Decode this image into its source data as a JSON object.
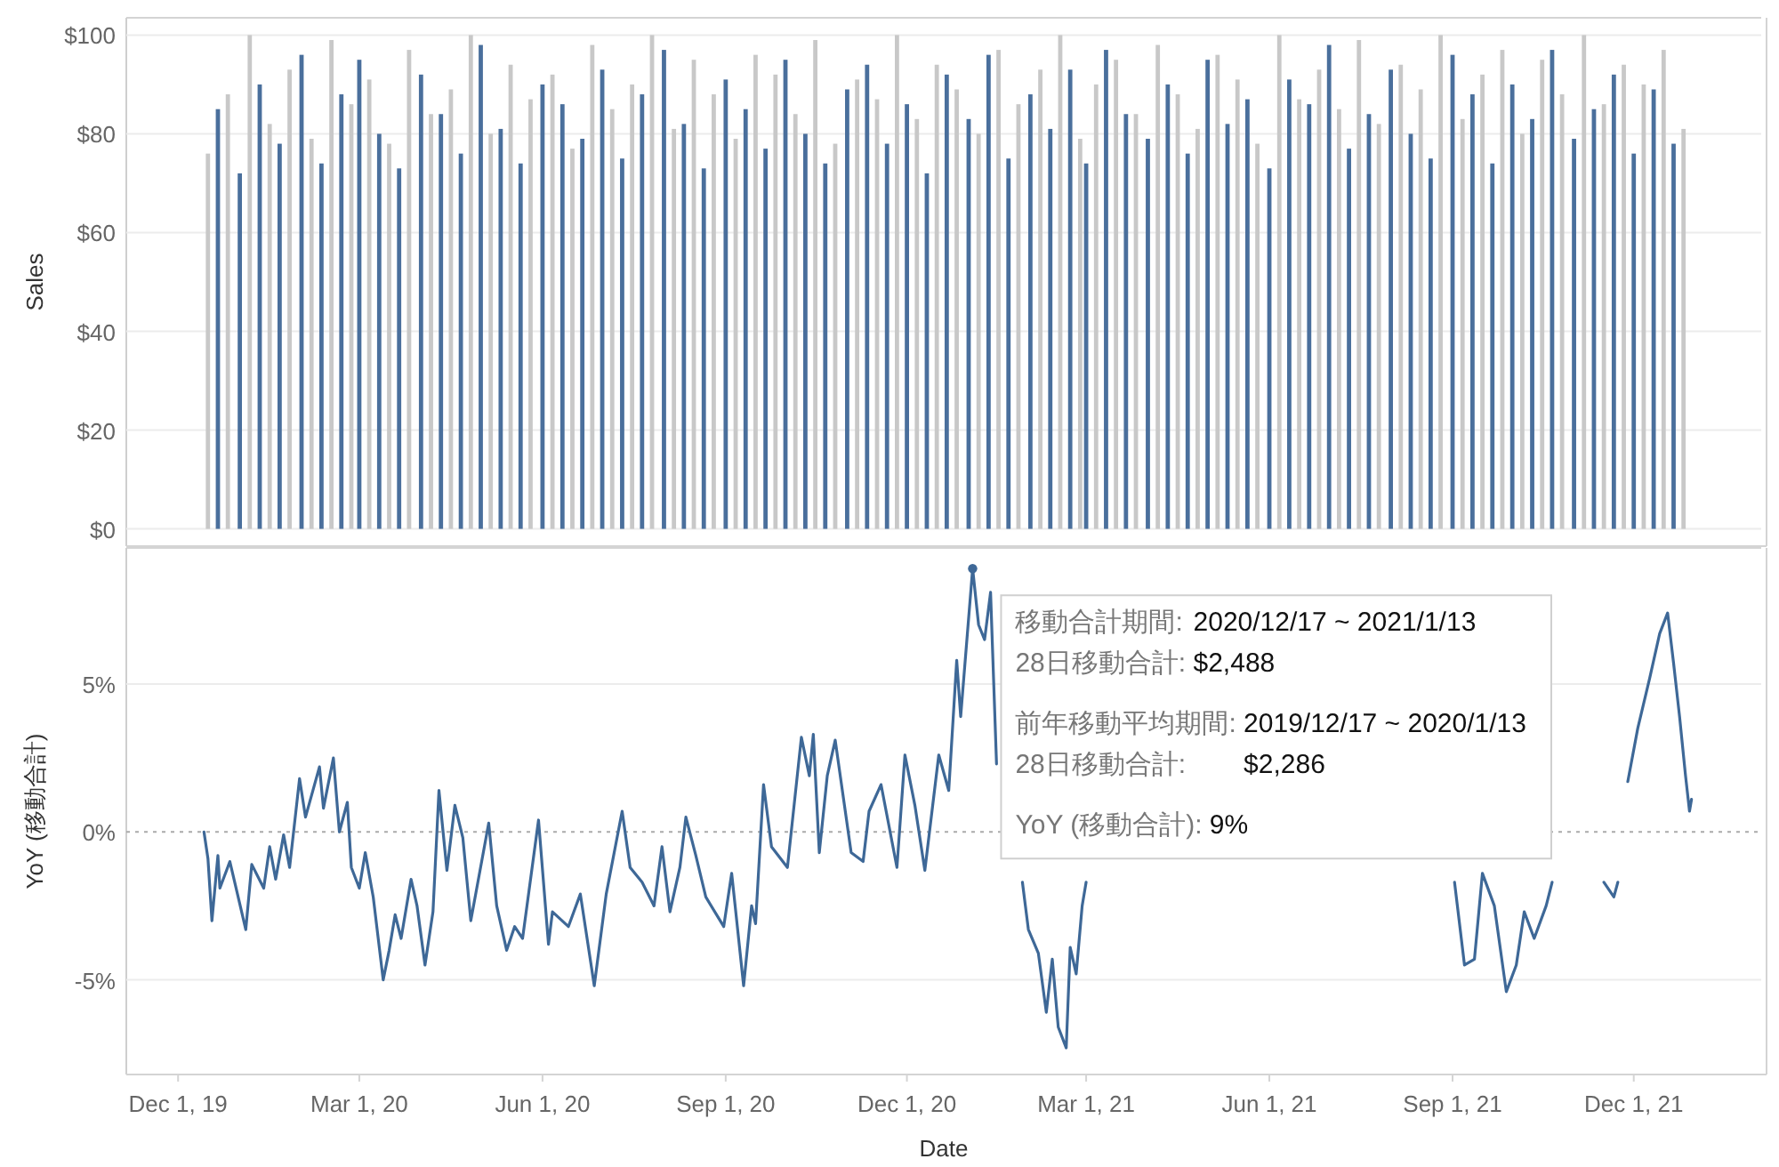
{
  "chart_data": [
    {
      "type": "bar",
      "ylabel": "Sales",
      "xlim": [
        "2019-11-05",
        "2022-02-03"
      ],
      "ylim": [
        -3.5,
        103.5
      ],
      "yticks": [
        {
          "value": 0,
          "label": "$0"
        },
        {
          "value": 20,
          "label": "$20"
        },
        {
          "value": 40,
          "label": "$40"
        },
        {
          "value": 60,
          "label": "$60"
        },
        {
          "value": 80,
          "label": "$80"
        },
        {
          "value": 100,
          "label": "$100"
        }
      ],
      "grid": "y",
      "tick_labels": "y",
      "series": [
        {
          "color": "#c8c8c8",
          "x": [
            "2019-12-16",
            "2019-12-26",
            "2020-01-06",
            "2020-01-16",
            "2020-01-26",
            "2020-02-06",
            "2020-02-16",
            "2020-02-26",
            "2020-03-06",
            "2020-03-16",
            "2020-03-26",
            "2020-04-06",
            "2020-04-16",
            "2020-04-26",
            "2020-05-06",
            "2020-05-16",
            "2020-05-26",
            "2020-06-06",
            "2020-06-16",
            "2020-06-26",
            "2020-07-06",
            "2020-07-16",
            "2020-07-26",
            "2020-08-06",
            "2020-08-16",
            "2020-08-26",
            "2020-09-06",
            "2020-09-16",
            "2020-09-26",
            "2020-10-06",
            "2020-10-16",
            "2020-10-26",
            "2020-11-06",
            "2020-11-16",
            "2020-11-26",
            "2020-12-06",
            "2020-12-16",
            "2020-12-26",
            "2021-01-06",
            "2021-01-16",
            "2021-01-26",
            "2021-02-06",
            "2021-02-16",
            "2021-02-26",
            "2021-03-06",
            "2021-03-16",
            "2021-03-26",
            "2021-04-06",
            "2021-04-16",
            "2021-04-26",
            "2021-05-06",
            "2021-05-16",
            "2021-05-26",
            "2021-06-06",
            "2021-06-16",
            "2021-06-26",
            "2021-07-06",
            "2021-07-16",
            "2021-07-26",
            "2021-08-06",
            "2021-08-16",
            "2021-08-26",
            "2021-09-06",
            "2021-09-16",
            "2021-09-26",
            "2021-10-06",
            "2021-10-16",
            "2021-10-26",
            "2021-11-06",
            "2021-11-16",
            "2021-11-26",
            "2021-12-06",
            "2021-12-16",
            "2021-12-26"
          ],
          "values": [
            76,
            88,
            100,
            82,
            93,
            79,
            99,
            86,
            91,
            78,
            97,
            84,
            89,
            100,
            80,
            94,
            87,
            92,
            77,
            98,
            85,
            90,
            100,
            81,
            95,
            88,
            79,
            96,
            92,
            84,
            99,
            78,
            91,
            87,
            100,
            83,
            94,
            89,
            80,
            97,
            86,
            93,
            100,
            79,
            90,
            95,
            84,
            98,
            88,
            81,
            96,
            91,
            78,
            100,
            87,
            93,
            85,
            99,
            82,
            94,
            89,
            100,
            83,
            92,
            97,
            80,
            95,
            88,
            100,
            86,
            94,
            90,
            97,
            81
          ]
        },
        {
          "color": "#4a6f9c",
          "x": [
            "2019-12-21",
            "2020-01-01",
            "2020-01-11",
            "2020-01-21",
            "2020-02-01",
            "2020-02-11",
            "2020-02-21",
            "2020-03-01",
            "2020-03-11",
            "2020-03-21",
            "2020-04-01",
            "2020-04-11",
            "2020-04-21",
            "2020-05-01",
            "2020-05-11",
            "2020-05-21",
            "2020-06-01",
            "2020-06-11",
            "2020-06-21",
            "2020-07-01",
            "2020-07-11",
            "2020-07-21",
            "2020-08-01",
            "2020-08-11",
            "2020-08-21",
            "2020-09-01",
            "2020-09-11",
            "2020-09-21",
            "2020-10-01",
            "2020-10-11",
            "2020-10-21",
            "2020-11-01",
            "2020-11-11",
            "2020-11-21",
            "2020-12-01",
            "2020-12-11",
            "2020-12-21",
            "2021-01-01",
            "2021-01-11",
            "2021-01-21",
            "2021-02-01",
            "2021-02-11",
            "2021-02-21",
            "2021-03-01",
            "2021-03-11",
            "2021-03-21",
            "2021-04-01",
            "2021-04-11",
            "2021-04-21",
            "2021-05-01",
            "2021-05-11",
            "2021-05-21",
            "2021-06-01",
            "2021-06-11",
            "2021-06-21",
            "2021-07-01",
            "2021-07-11",
            "2021-07-21",
            "2021-08-01",
            "2021-08-11",
            "2021-08-21",
            "2021-09-01",
            "2021-09-11",
            "2021-09-21",
            "2021-10-01",
            "2021-10-11",
            "2021-10-21",
            "2021-11-01",
            "2021-11-11",
            "2021-11-21",
            "2021-12-01",
            "2021-12-11",
            "2021-12-21"
          ],
          "values": [
            85,
            72,
            90,
            78,
            96,
            74,
            88,
            95,
            80,
            73,
            92,
            84,
            76,
            98,
            81,
            74,
            90,
            86,
            79,
            93,
            75,
            88,
            97,
            82,
            73,
            91,
            85,
            77,
            95,
            80,
            74,
            89,
            94,
            78,
            86,
            72,
            92,
            83,
            96,
            75,
            88,
            81,
            93,
            74,
            97,
            84,
            79,
            90,
            76,
            95,
            82,
            87,
            73,
            91,
            86,
            98,
            77,
            84,
            93,
            80,
            75,
            96,
            88,
            74,
            90,
            83,
            97,
            79,
            85,
            92,
            76,
            89,
            78
          ]
        }
      ]
    },
    {
      "type": "line",
      "xlabel": "Date",
      "ylabel": "YoY (移動合計)",
      "xlim": [
        "2019-11-05",
        "2022-02-03"
      ],
      "xticks": [
        {
          "value": "2019-12-01",
          "label": "Dec 1, 19"
        },
        {
          "value": "2020-03-01",
          "label": "Mar 1, 20"
        },
        {
          "value": "2020-06-01",
          "label": "Jun 1, 20"
        },
        {
          "value": "2020-09-01",
          "label": "Sep 1, 20"
        },
        {
          "value": "2020-12-01",
          "label": "Dec 1, 20"
        },
        {
          "value": "2021-03-01",
          "label": "Mar 1, 21"
        },
        {
          "value": "2021-06-01",
          "label": "Jun 1, 21"
        },
        {
          "value": "2021-09-01",
          "label": "Sep 1, 21"
        },
        {
          "value": "2021-12-01",
          "label": "Dec 1, 21"
        }
      ],
      "ylim": [
        -8.2,
        9.6
      ],
      "yticks": [
        {
          "value": -5,
          "label": "-5%"
        },
        {
          "value": 0,
          "label": "0%"
        },
        {
          "value": 5,
          "label": "5%"
        }
      ],
      "grid": "y",
      "ref_lines": [
        {
          "axis": "y",
          "value": 0,
          "line_style": "dotted",
          "color": "#aaaaaa"
        }
      ],
      "series": [
        {
          "color": "#3e6897",
          "x": [
            "2019-12-14",
            "2019-12-16",
            "2019-12-18",
            "2019-12-21",
            "2019-12-22",
            "2019-12-27",
            "2020-01-04",
            "2020-01-07",
            "2020-01-13",
            "2020-01-16",
            "2020-01-19",
            "2020-01-23",
            "2020-01-26",
            "2020-01-31",
            "2020-02-03",
            "2020-02-10",
            "2020-02-12",
            "2020-02-17",
            "2020-02-20",
            "2020-02-24",
            "2020-02-26",
            "2020-03-01",
            "2020-03-04",
            "2020-03-08",
            "2020-03-13",
            "2020-03-16",
            "2020-03-19",
            "2020-03-22",
            "2020-03-27",
            "2020-03-30",
            "2020-04-03",
            "2020-04-07",
            "2020-04-10",
            "2020-04-14",
            "2020-04-18",
            "2020-04-22",
            "2020-04-26",
            "2020-05-05",
            "2020-05-09",
            "2020-05-14",
            "2020-05-18",
            "2020-05-22",
            "2020-05-30",
            "2020-06-04",
            "2020-06-06",
            "2020-06-14",
            "2020-06-20",
            "2020-06-27",
            "2020-07-03",
            "2020-07-11",
            "2020-07-15",
            "2020-07-21",
            "2020-07-27",
            "2020-07-31",
            "2020-08-04",
            "2020-08-09",
            "2020-08-12",
            "2020-08-17",
            "2020-08-22",
            "2020-08-31",
            "2020-09-04",
            "2020-09-10",
            "2020-09-14",
            "2020-09-16",
            "2020-09-20",
            "2020-09-24",
            "2020-10-02",
            "2020-10-09",
            "2020-10-13",
            "2020-10-15",
            "2020-10-18",
            "2020-10-22",
            "2020-10-26",
            "2020-11-03",
            "2020-11-09",
            "2020-11-12",
            "2020-11-18",
            "2020-11-26",
            "2020-11-30",
            "2020-12-05",
            "2020-12-10",
            "2020-12-17",
            "2020-12-22",
            "2020-12-26",
            "2020-12-28",
            "2021-01-03",
            "2021-01-06",
            "2021-01-09",
            "2021-01-12",
            "2021-01-15",
            "2021-01-19",
            "2021-01-28",
            "2021-01-31",
            "2021-02-05",
            "2021-02-09",
            "2021-02-12",
            "2021-02-15",
            "2021-02-19",
            "2021-02-21",
            "2021-02-24",
            "2021-02-27",
            "2021-03-01",
            "2021-06-03",
            "2021-09-02",
            "2021-09-07",
            "2021-09-12",
            "2021-09-16",
            "2021-09-22",
            "2021-09-28",
            "2021-10-03",
            "2021-10-07",
            "2021-10-12",
            "2021-10-18",
            "2021-10-21",
            "2021-10-26",
            "2021-11-16",
            "2021-11-21",
            "2021-11-23",
            "2021-11-27",
            "2021-11-28",
            "2021-12-03",
            "2021-12-09",
            "2021-12-14",
            "2021-12-18",
            "2021-12-21",
            "2021-12-24",
            "2021-12-27",
            "2021-12-29",
            "2021-12-30"
          ],
          "values": [
            0,
            -0.9,
            -3.0,
            -0.8,
            -1.9,
            -1.0,
            -3.3,
            -1.1,
            -1.9,
            -0.5,
            -1.6,
            -0.1,
            -1.2,
            1.8,
            0.5,
            2.2,
            0.8,
            2.5,
            0.0,
            1.0,
            -1.2,
            -1.9,
            -0.7,
            -2.2,
            -5.0,
            -4.0,
            -2.8,
            -3.6,
            -1.6,
            -2.5,
            -4.5,
            -2.7,
            1.4,
            -1.3,
            0.9,
            -0.2,
            -3.0,
            0.3,
            -2.5,
            -4.0,
            -3.2,
            -3.6,
            0.4,
            -3.8,
            -2.7,
            -3.2,
            -2.1,
            -5.2,
            -2.1,
            0.7,
            -1.2,
            -1.7,
            -2.5,
            -0.5,
            -2.7,
            -1.2,
            0.5,
            -0.8,
            -2.2,
            -3.2,
            -1.4,
            -5.2,
            -2.5,
            -3.1,
            1.6,
            -0.5,
            -1.2,
            3.2,
            1.9,
            3.3,
            -0.7,
            1.9,
            3.1,
            -0.7,
            -1.0,
            0.7,
            1.6,
            -1.2,
            2.6,
            0.9,
            -1.3,
            2.6,
            1.4,
            5.8,
            3.9,
            8.9,
            7.0,
            6.5,
            8.1,
            2.3,
            null,
            -1.7,
            -3.3,
            -4.1,
            -6.1,
            -4.3,
            -6.6,
            -7.3,
            -3.9,
            -4.8,
            -2.5,
            -1.7,
            null,
            -1.7,
            -4.5,
            -4.3,
            -1.4,
            -2.5,
            -5.4,
            -4.5,
            -2.7,
            -3.6,
            -2.5,
            -1.7,
            null,
            -1.7,
            -2.2,
            -1.7,
            null,
            1.7,
            3.5,
            5.2,
            6.7,
            7.4,
            5.7,
            3.9,
            1.9,
            0.7,
            1.1
          ]
        }
      ],
      "annotations": [
        {
          "text": "移動合計期間: 2020/12/17 ~ 2021/1/13",
          "x": "2021-01-03",
          "y": 8.9
        },
        "28日移動合計: $2,488",
        "前年移動平均期間: 2019/12/17 ~ 2020/1/13",
        "28日移動合計: $2,286",
        "YoY (移動合計): 9%"
      ]
    }
  ]
}
